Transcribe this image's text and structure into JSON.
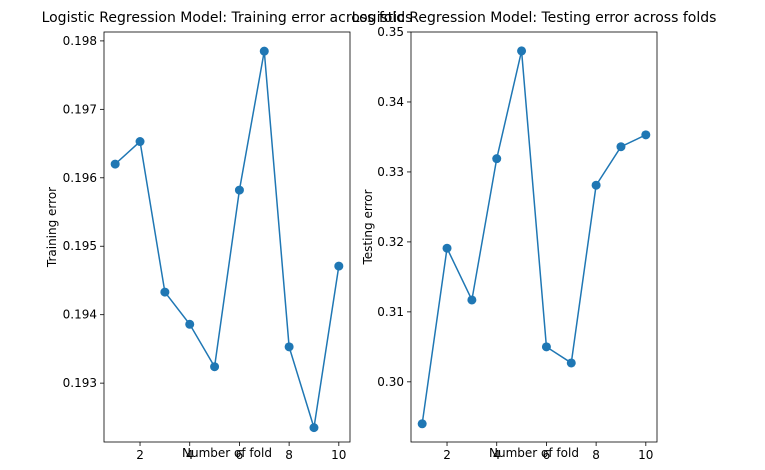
{
  "chart_data": [
    {
      "type": "line",
      "title": "Logistic Regression Model: Training error across folds",
      "xlabel": "Number of fold",
      "ylabel": "Training error",
      "x": [
        1,
        2,
        3,
        4,
        5,
        6,
        7,
        8,
        9,
        10
      ],
      "series": [
        {
          "values": [
            0.1962,
            0.19653,
            0.19433,
            0.19386,
            0.19324,
            0.19582,
            0.19785,
            0.19353,
            0.19235,
            0.19471
          ],
          "color": "#1f77b4",
          "marker": "circle"
        }
      ],
      "xticks": [
        2,
        4,
        6,
        8,
        10
      ],
      "xtick_labels": [
        "2",
        "4",
        "6",
        "8",
        "10"
      ],
      "yticks": [
        0.193,
        0.194,
        0.195,
        0.196,
        0.197,
        0.198
      ],
      "ytick_labels": [
        "0.193",
        "0.194",
        "0.195",
        "0.196",
        "0.197",
        "0.198"
      ],
      "xlim": [
        0.55,
        10.45
      ],
      "ylim": [
        0.19214,
        0.19813
      ],
      "grid": false
    },
    {
      "type": "line",
      "title": "Logistic Regression Model: Testing error across folds",
      "xlabel": "Number of fold",
      "ylabel": "Testing error",
      "x": [
        1,
        2,
        3,
        4,
        5,
        6,
        7,
        8,
        9,
        10
      ],
      "series": [
        {
          "values": [
            0.294,
            0.3191,
            0.3117,
            0.3319,
            0.3473,
            0.305,
            0.3027,
            0.3281,
            0.3336,
            0.3353
          ],
          "color": "#1f77b4",
          "marker": "circle"
        }
      ],
      "xticks": [
        2,
        4,
        6,
        8,
        10
      ],
      "xtick_labels": [
        "2",
        "4",
        "6",
        "8",
        "10"
      ],
      "yticks": [
        0.3,
        0.31,
        0.32,
        0.33,
        0.34,
        0.35
      ],
      "ytick_labels": [
        "0.30",
        "0.31",
        "0.32",
        "0.33",
        "0.34",
        "0.35"
      ],
      "xlim": [
        0.55,
        10.45
      ],
      "ylim": [
        0.2914,
        0.35
      ],
      "grid": false
    }
  ]
}
